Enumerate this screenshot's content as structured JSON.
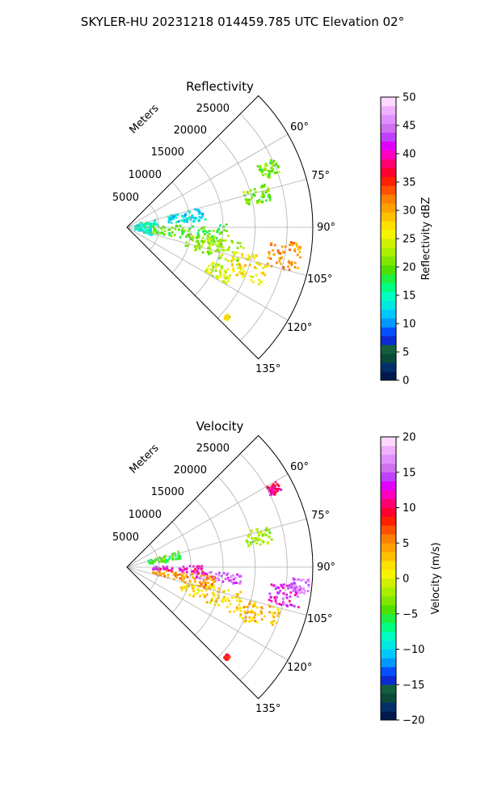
{
  "suptitle": "SKYLER-HU  20231218  014459.785 UTC Elevation 02°",
  "chart_data": [
    {
      "type": "heatmap",
      "subtype": "polar-sector (PPI radar scan)",
      "title": "Reflectivity",
      "range_label": "Meters",
      "azimuth_range_deg": [
        45,
        135
      ],
      "range_limits_m": [
        0,
        29000
      ],
      "radial_ticks": [
        "5000",
        "10000",
        "15000",
        "20000",
        "25000"
      ],
      "azimuth_ticks": [
        "60°",
        "75°",
        "90°",
        "105°",
        "120°",
        "135°"
      ],
      "colorbar": {
        "label": "Reflectivity dBZ",
        "min": 0,
        "max": 50,
        "ticks": [
          "0",
          "5",
          "10",
          "15",
          "20",
          "25",
          "30",
          "35",
          "40",
          "45",
          "50"
        ],
        "colors": [
          "#001a4d",
          "#03306b",
          "#0a4a3a",
          "#12603d",
          "#0b2ad0",
          "#0550ff",
          "#0099ff",
          "#00c8ff",
          "#00e8e0",
          "#00ffc0",
          "#00ff80",
          "#20f040",
          "#50e000",
          "#80e800",
          "#a8f000",
          "#d0f000",
          "#f5f500",
          "#ffe000",
          "#ffc000",
          "#ffa000",
          "#ff8000",
          "#ff5000",
          "#ff2000",
          "#ff0030",
          "#ff0070",
          "#ff00c0",
          "#e000ff",
          "#c040ff",
          "#d070f0",
          "#e090ff",
          "#f0b0ff",
          "#ffd8ff"
        ]
      },
      "features": [
        {
          "kind": "blob",
          "az_deg": 90,
          "range_m": 3000,
          "width_deg": 35,
          "depth_m": 3500,
          "value": 14
        },
        {
          "kind": "blob",
          "az_deg": 80,
          "range_m": 9500,
          "width_deg": 10,
          "depth_m": 6000,
          "value": 13
        },
        {
          "kind": "blob",
          "az_deg": 95,
          "range_m": 10000,
          "width_deg": 14,
          "depth_m": 12000,
          "value": 20
        },
        {
          "kind": "blob",
          "az_deg": 103,
          "range_m": 14000,
          "width_deg": 12,
          "depth_m": 9000,
          "value": 22
        },
        {
          "kind": "blob",
          "az_deg": 108,
          "range_m": 20000,
          "width_deg": 12,
          "depth_m": 6000,
          "value": 27
        },
        {
          "kind": "blob",
          "az_deg": 100,
          "range_m": 25000,
          "width_deg": 10,
          "depth_m": 5000,
          "value": 31
        },
        {
          "kind": "blob",
          "az_deg": 68,
          "range_m": 24000,
          "width_deg": 6,
          "depth_m": 3000,
          "value": 21
        },
        {
          "kind": "blob",
          "az_deg": 76,
          "range_m": 21000,
          "width_deg": 7,
          "depth_m": 4000,
          "value": 21
        },
        {
          "kind": "blob",
          "az_deg": 116,
          "range_m": 16000,
          "width_deg": 8,
          "depth_m": 4000,
          "value": 24
        },
        {
          "kind": "blob",
          "az_deg": 132,
          "range_m": 21000,
          "width_deg": 2,
          "depth_m": 600,
          "value": 27
        }
      ]
    },
    {
      "type": "heatmap",
      "subtype": "polar-sector (PPI radar scan)",
      "title": "Velocity",
      "range_label": "Meters",
      "azimuth_range_deg": [
        45,
        135
      ],
      "range_limits_m": [
        0,
        29000
      ],
      "radial_ticks": [
        "5000",
        "10000",
        "15000",
        "20000",
        "25000"
      ],
      "azimuth_ticks": [
        "60°",
        "75°",
        "90°",
        "105°",
        "120°",
        "135°"
      ],
      "colorbar": {
        "label": "Velocity (m/s)",
        "min": -20,
        "max": 20,
        "ticks": [
          "−20",
          "−15",
          "−10",
          "−5",
          "0",
          "5",
          "10",
          "15",
          "20"
        ],
        "colors": [
          "#001a4d",
          "#03306b",
          "#0a4a3a",
          "#12603d",
          "#0b2ad0",
          "#0550ff",
          "#0099ff",
          "#00c8ff",
          "#00e8e0",
          "#00ffc0",
          "#00ff80",
          "#20f040",
          "#50e000",
          "#80e800",
          "#a8f000",
          "#d0f000",
          "#f5f500",
          "#ffe000",
          "#ffc000",
          "#ffa000",
          "#ff8000",
          "#ff5000",
          "#ff2000",
          "#ff0030",
          "#ff0070",
          "#ff00c0",
          "#e000ff",
          "#c040ff",
          "#d070f0",
          "#e090ff",
          "#f0b0ff",
          "#ffd8ff"
        ]
      },
      "features": [
        {
          "kind": "blob",
          "az_deg": 78,
          "range_m": 6000,
          "width_deg": 10,
          "depth_m": 5000,
          "value": -5
        },
        {
          "kind": "blob",
          "az_deg": 92,
          "range_m": 8000,
          "width_deg": 6,
          "depth_m": 8000,
          "value": 12
        },
        {
          "kind": "blob",
          "az_deg": 96,
          "range_m": 14000,
          "width_deg": 6,
          "depth_m": 8000,
          "value": 15
        },
        {
          "kind": "blob",
          "az_deg": 100,
          "range_m": 9000,
          "width_deg": 10,
          "depth_m": 10000,
          "value": 5
        },
        {
          "kind": "blob",
          "az_deg": 108,
          "range_m": 14000,
          "width_deg": 12,
          "depth_m": 10000,
          "value": 2
        },
        {
          "kind": "blob",
          "az_deg": 110,
          "range_m": 22000,
          "width_deg": 10,
          "depth_m": 6000,
          "value": 3
        },
        {
          "kind": "blob",
          "az_deg": 100,
          "range_m": 25000,
          "width_deg": 8,
          "depth_m": 5000,
          "value": 13
        },
        {
          "kind": "blob",
          "az_deg": 96,
          "range_m": 27000,
          "width_deg": 5,
          "depth_m": 3000,
          "value": 16
        },
        {
          "kind": "blob",
          "az_deg": 77,
          "range_m": 21000,
          "width_deg": 7,
          "depth_m": 4000,
          "value": -2
        },
        {
          "kind": "blob",
          "az_deg": 62,
          "range_m": 26000,
          "width_deg": 4,
          "depth_m": 2000,
          "value": 11
        },
        {
          "kind": "blob",
          "az_deg": 132,
          "range_m": 21000,
          "width_deg": 2,
          "depth_m": 600,
          "value": 8
        }
      ]
    }
  ]
}
